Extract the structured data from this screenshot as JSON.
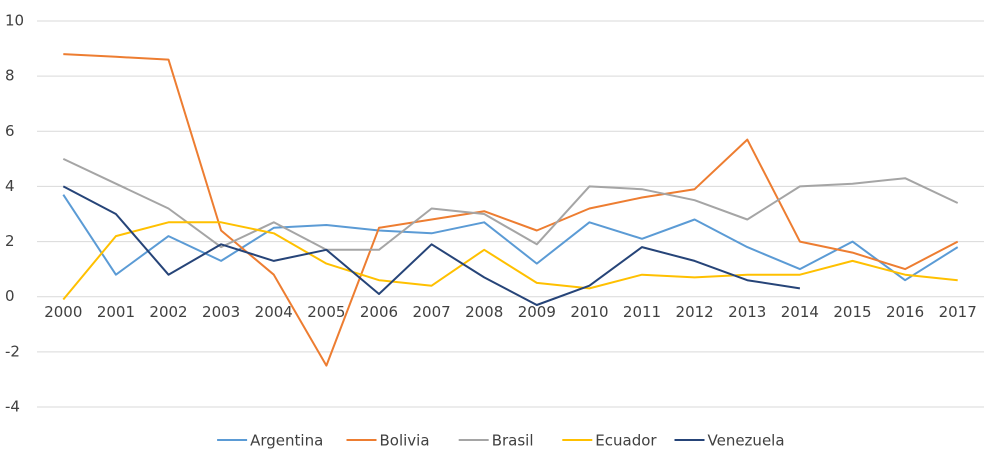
{
  "chart_data": {
    "type": "line",
    "categories": [
      "2000",
      "2001",
      "2002",
      "2003",
      "2004",
      "2005",
      "2006",
      "2007",
      "2008",
      "2009",
      "2010",
      "2011",
      "2012",
      "2013",
      "2014",
      "2015",
      "2016",
      "2017"
    ],
    "series": [
      {
        "name": "Argentina",
        "color": "#5b9bd5",
        "values": [
          3.7,
          0.8,
          2.2,
          1.3,
          2.5,
          2.6,
          2.4,
          2.3,
          2.7,
          1.2,
          2.7,
          2.1,
          2.8,
          1.8,
          1.0,
          2.0,
          0.6,
          1.8
        ]
      },
      {
        "name": "Bolivia",
        "color": "#ed7d31",
        "values": [
          8.8,
          8.7,
          8.6,
          2.4,
          0.8,
          -2.5,
          2.5,
          2.8,
          3.1,
          2.4,
          3.2,
          3.6,
          3.9,
          5.7,
          2.0,
          1.6,
          1.0,
          2.0
        ]
      },
      {
        "name": "Brasil",
        "color": "#a5a5a5",
        "values": [
          5.0,
          4.1,
          3.2,
          1.8,
          2.7,
          1.7,
          1.7,
          3.2,
          3.0,
          1.9,
          4.0,
          3.9,
          3.5,
          2.8,
          4.0,
          4.1,
          4.3,
          3.4
        ]
      },
      {
        "name": "Ecuador",
        "color": "#ffc000",
        "values": [
          -0.1,
          2.2,
          2.7,
          2.7,
          2.3,
          1.2,
          0.6,
          0.4,
          1.7,
          0.5,
          0.3,
          0.8,
          0.7,
          0.8,
          0.8,
          1.3,
          0.8,
          0.6
        ]
      },
      {
        "name": "Venezuela",
        "color": "#264478",
        "values": [
          4.0,
          3.0,
          0.8,
          1.9,
          1.3,
          1.7,
          0.1,
          1.9,
          0.7,
          -0.3,
          0.4,
          1.8,
          1.3,
          0.6,
          0.3,
          null,
          null,
          null
        ]
      }
    ],
    "ylim": [
      -4,
      10
    ],
    "yticks": [
      -4,
      -2,
      0,
      2,
      4,
      6,
      8,
      10
    ],
    "grid": true,
    "legend": "bottom"
  }
}
